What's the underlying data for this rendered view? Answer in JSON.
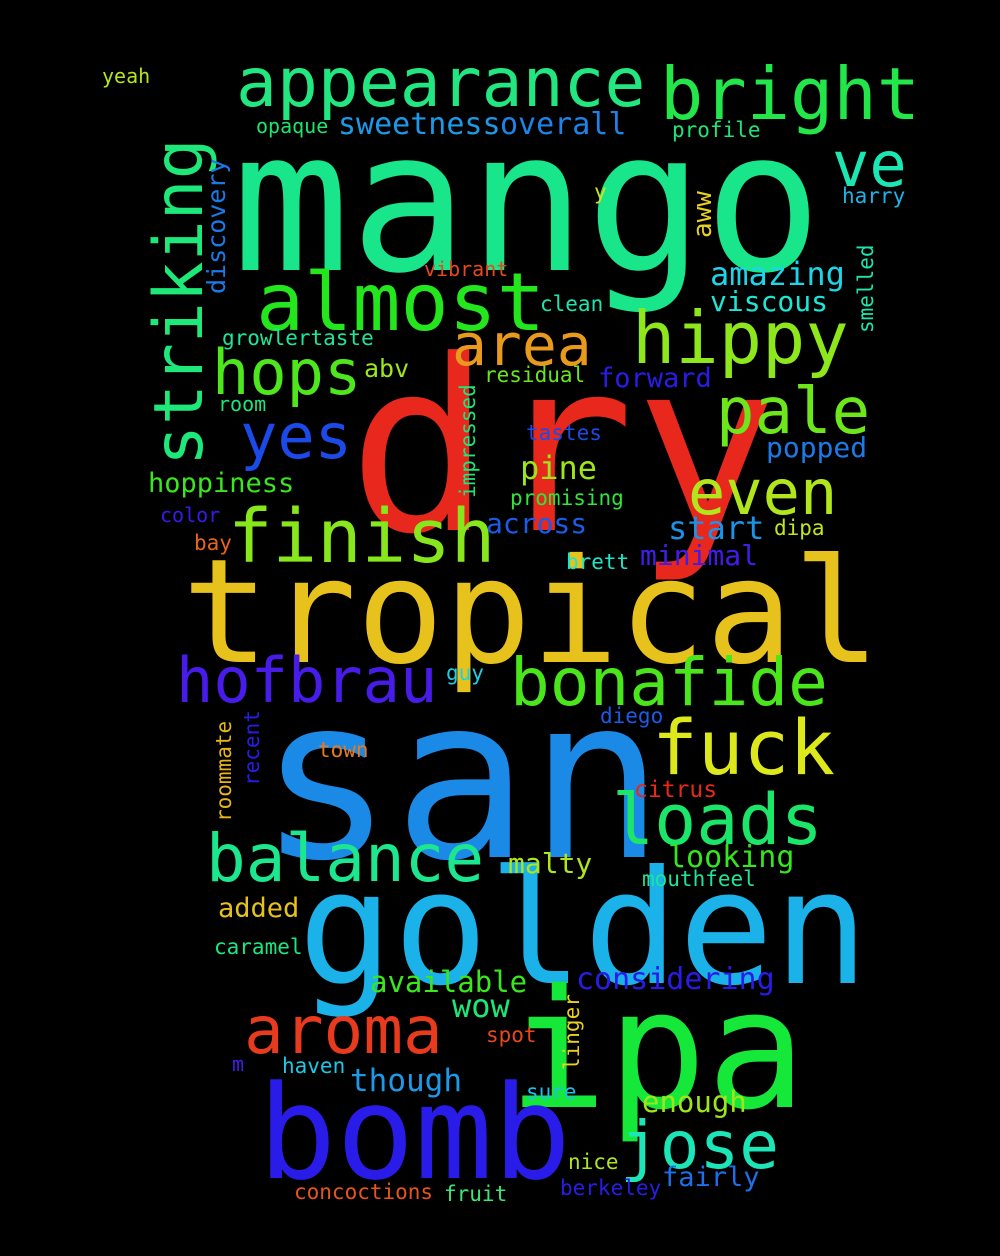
{
  "words": [
    {
      "text": "mango",
      "color": "#19e68a"
    },
    {
      "text": "dry",
      "color": "#e8281c"
    },
    {
      "text": "tropical",
      "color": "#e8c21c"
    },
    {
      "text": "san",
      "color": "#1a8ae6"
    },
    {
      "text": "golden",
      "color": "#1ab2e8"
    },
    {
      "text": "ipa",
      "color": "#16e83a"
    },
    {
      "text": "bomb",
      "color": "#2a1ce8"
    },
    {
      "text": "appearance",
      "color": "#22e680"
    },
    {
      "text": "bright",
      "color": "#22e64a"
    },
    {
      "text": "striking",
      "color": "#1ee87a"
    },
    {
      "text": "almost",
      "color": "#24e61c"
    },
    {
      "text": "hippy",
      "color": "#8ee61c"
    },
    {
      "text": "area",
      "color": "#e89a1c"
    },
    {
      "text": "hops",
      "color": "#4ee61c"
    },
    {
      "text": "pale",
      "color": "#6ee61c"
    },
    {
      "text": "finish",
      "color": "#88e61c"
    },
    {
      "text": "even",
      "color": "#b2e61c"
    },
    {
      "text": "yes",
      "color": "#1c4ae8"
    },
    {
      "text": "ve",
      "color": "#1ce6b2"
    },
    {
      "text": "hofbrau",
      "color": "#481ce8"
    },
    {
      "text": "bonafide",
      "color": "#4ae61c"
    },
    {
      "text": "fuck",
      "color": "#dce81c"
    },
    {
      "text": "loads",
      "color": "#1ce66a"
    },
    {
      "text": "balance",
      "color": "#1ce68e"
    },
    {
      "text": "aroma",
      "color": "#e83a1c"
    },
    {
      "text": "jose",
      "color": "#1ce6b8"
    },
    {
      "text": "sweetness",
      "color": "#1c9ae8"
    },
    {
      "text": "overall",
      "color": "#1c84e8"
    },
    {
      "text": "amazing",
      "color": "#1cd6e8"
    },
    {
      "text": "viscous",
      "color": "#1ce6d6"
    },
    {
      "text": "yeah",
      "color": "#b4e61c"
    },
    {
      "text": "opaque",
      "color": "#1ce66e"
    },
    {
      "text": "profile",
      "color": "#1ce678"
    },
    {
      "text": "harry",
      "color": "#1cb4e8"
    },
    {
      "text": "discovery",
      "color": "#1c7ae8"
    },
    {
      "text": "aww",
      "color": "#e8d21c"
    },
    {
      "text": "y",
      "color": "#c8e61c"
    },
    {
      "text": "vibrant",
      "color": "#e8481c"
    },
    {
      "text": "clean",
      "color": "#1ce6ae"
    },
    {
      "text": "smelled",
      "color": "#1ce6ae"
    },
    {
      "text": "growlertaste",
      "color": "#1ce69a"
    },
    {
      "text": "abv",
      "color": "#9ee61c"
    },
    {
      "text": "residual",
      "color": "#6ae61c"
    },
    {
      "text": "forward",
      "color": "#2a1ce8"
    },
    {
      "text": "room",
      "color": "#1ce67a"
    },
    {
      "text": "impressed",
      "color": "#1ce67a"
    },
    {
      "text": "tastes",
      "color": "#1c4ae8"
    },
    {
      "text": "popped",
      "color": "#1c7ae8"
    },
    {
      "text": "pine",
      "color": "#9ee61c"
    },
    {
      "text": "hoppiness",
      "color": "#3ae61c"
    },
    {
      "text": "promising",
      "color": "#2ee63a"
    },
    {
      "text": "color",
      "color": "#361ce8"
    },
    {
      "text": "across",
      "color": "#1c5ae8"
    },
    {
      "text": "start",
      "color": "#1c92e8"
    },
    {
      "text": "dipa",
      "color": "#c2e61c"
    },
    {
      "text": "bay",
      "color": "#e8641c"
    },
    {
      "text": "brett",
      "color": "#1ce6c8"
    },
    {
      "text": "minimal",
      "color": "#441ce8"
    },
    {
      "text": "guy",
      "color": "#1cd0e8"
    },
    {
      "text": "diego",
      "color": "#1c5ae8"
    },
    {
      "text": "roommate",
      "color": "#e8b41c"
    },
    {
      "text": "recent",
      "color": "#2a1ce8"
    },
    {
      "text": "town",
      "color": "#e87a1c"
    },
    {
      "text": "citrus",
      "color": "#e8281c"
    },
    {
      "text": "malty",
      "color": "#aee61c"
    },
    {
      "text": "looking",
      "color": "#34e61c"
    },
    {
      "text": "mouthfeel",
      "color": "#1ce69a"
    },
    {
      "text": "added",
      "color": "#e8c21c"
    },
    {
      "text": "caramel",
      "color": "#1ce682"
    },
    {
      "text": "available",
      "color": "#3ae61c"
    },
    {
      "text": "considering",
      "color": "#2a1ce8"
    },
    {
      "text": "wow",
      "color": "#1ce676"
    },
    {
      "text": "spot",
      "color": "#e8481c"
    },
    {
      "text": "linger",
      "color": "#e8d21c"
    },
    {
      "text": "m",
      "color": "#441ce8"
    },
    {
      "text": "haven",
      "color": "#1cc8e8"
    },
    {
      "text": "though",
      "color": "#1c9ae8"
    },
    {
      "text": "sure",
      "color": "#1cc0e8"
    },
    {
      "text": "enough",
      "color": "#9ee61c"
    },
    {
      "text": "nice",
      "color": "#aee61c"
    },
    {
      "text": "fairly",
      "color": "#1c70e8"
    },
    {
      "text": "concoctions",
      "color": "#e8541c"
    },
    {
      "text": "fruit",
      "color": "#3ae67a"
    },
    {
      "text": "berkeley",
      "color": "#2a1ce8"
    }
  ]
}
